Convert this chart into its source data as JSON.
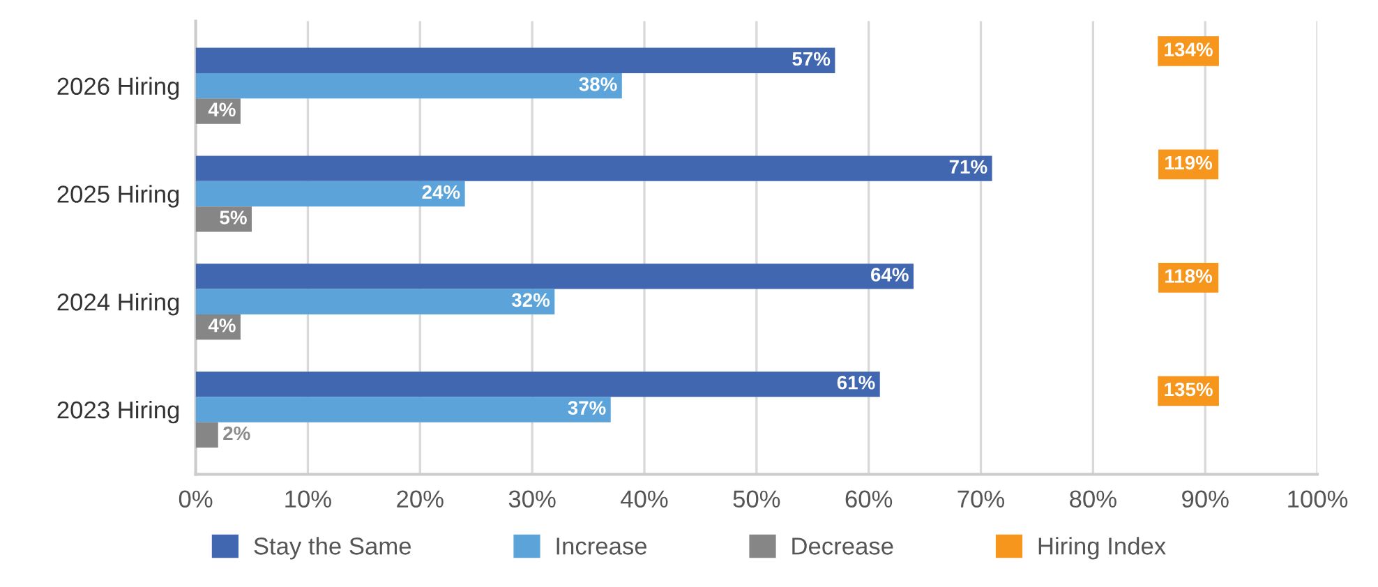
{
  "chart_data": {
    "type": "bar",
    "orientation": "horizontal",
    "categories": [
      "2026 Hiring",
      "2025 Hiring",
      "2024 Hiring",
      "2023 Hiring"
    ],
    "series": [
      {
        "name": "Stay the Same",
        "color": "#4167b1",
        "values": [
          57,
          71,
          64,
          61
        ],
        "value_labels": [
          "57%",
          "71%",
          "64%",
          "61%"
        ]
      },
      {
        "name": "Increase",
        "color": "#5ba3d9",
        "values": [
          38,
          24,
          32,
          37
        ],
        "value_labels": [
          "38%",
          "24%",
          "32%",
          "37%"
        ]
      },
      {
        "name": "Decrease",
        "color": "#868686",
        "values": [
          4,
          5,
          4,
          2
        ],
        "value_labels": [
          "4%",
          "5%",
          "4%",
          "2%"
        ]
      },
      {
        "name": "Hiring Index",
        "color": "#f7961d",
        "values": [
          null,
          null,
          null,
          null
        ],
        "value_labels": [
          "134%",
          "119%",
          "118%",
          "135%"
        ]
      }
    ],
    "xlim": [
      0,
      100
    ],
    "xticks": [
      {
        "value": 0,
        "label": "0%"
      },
      {
        "value": 10,
        "label": "10%"
      },
      {
        "value": 20,
        "label": "20%"
      },
      {
        "value": 30,
        "label": "30%"
      },
      {
        "value": 40,
        "label": "40%"
      },
      {
        "value": 50,
        "label": "50%"
      },
      {
        "value": 60,
        "label": "60%"
      },
      {
        "value": 70,
        "label": "70%"
      },
      {
        "value": 80,
        "label": "80%"
      },
      {
        "value": 90,
        "label": "90%"
      },
      {
        "value": 100,
        "label": "100%"
      }
    ],
    "grid": "x",
    "legend": "bottom"
  }
}
